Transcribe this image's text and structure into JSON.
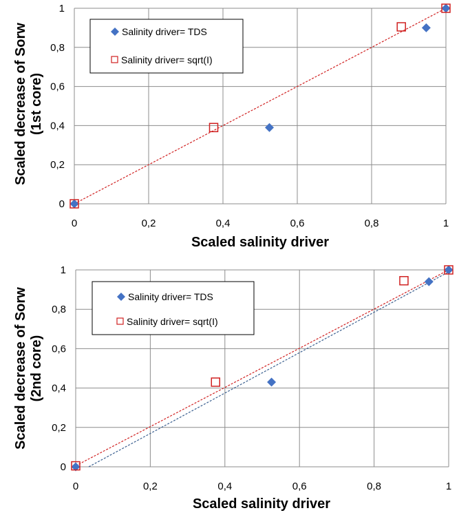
{
  "chart_data": [
    {
      "type": "scatter",
      "xlabel": "Scaled salinity driver",
      "ylabel_lines": [
        "Scaled decrease of Sorw",
        "(1st core)"
      ],
      "xlim": [
        0,
        1
      ],
      "ylim": [
        0,
        1
      ],
      "x_ticks": [
        "0",
        "0,2",
        "0,4",
        "0,6",
        "0,8",
        "1"
      ],
      "y_ticks": [
        "0",
        "0,2",
        "0,4",
        "0,6",
        "0,8",
        "1"
      ],
      "grid": true,
      "legend_position": "top-left",
      "series": [
        {
          "name": "Salinity driver= TDS",
          "marker": "diamond",
          "color": "#4472C4",
          "x": [
            0,
            0.525,
            0.947,
            1
          ],
          "y": [
            0,
            0.39,
            0.9,
            1
          ]
        },
        {
          "name": "Salinity driver= sqrt(I)",
          "marker": "square-open",
          "color": "#D02020",
          "x": [
            0,
            0.375,
            0.88,
            1
          ],
          "y": [
            0,
            0.39,
            0.905,
            1
          ]
        }
      ],
      "trendlines": [
        {
          "color": "#D02020",
          "x": [
            0,
            1
          ],
          "y": [
            0,
            1
          ]
        }
      ]
    },
    {
      "type": "scatter",
      "xlabel": "Scaled salinity driver",
      "ylabel_lines": [
        "Scaled decrease of Sorw",
        "(2nd core)"
      ],
      "xlim": [
        0,
        1
      ],
      "ylim": [
        0,
        1
      ],
      "x_ticks": [
        "0",
        "0,2",
        "0,4",
        "0,6",
        "0,8",
        "1"
      ],
      "y_ticks": [
        "0",
        "0,2",
        "0,4",
        "0,6",
        "0,8",
        "1"
      ],
      "grid": true,
      "legend_position": "top-left",
      "series": [
        {
          "name": "Salinity driver= TDS",
          "marker": "diamond",
          "color": "#4472C4",
          "x": [
            0,
            0.525,
            0.947,
            1
          ],
          "y": [
            0,
            0.43,
            0.94,
            1
          ]
        },
        {
          "name": "Salinity driver= sqrt(I)",
          "marker": "square-open",
          "color": "#D02020",
          "x": [
            0,
            0.375,
            0.88,
            1
          ],
          "y": [
            0.005,
            0.43,
            0.945,
            1
          ]
        }
      ],
      "trendlines": [
        {
          "color": "#D02020",
          "x": [
            0,
            1
          ],
          "y": [
            0.005,
            1
          ]
        },
        {
          "color": "#3A5F8F",
          "x": [
            0.035,
            1
          ],
          "y": [
            0,
            0.99
          ]
        }
      ]
    }
  ]
}
